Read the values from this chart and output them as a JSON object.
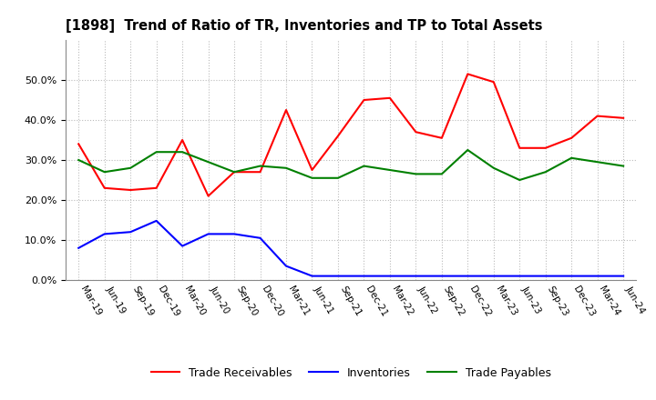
{
  "title": "[1898]  Trend of Ratio of TR, Inventories and TP to Total Assets",
  "x_labels": [
    "Mar-19",
    "Jun-19",
    "Sep-19",
    "Dec-19",
    "Mar-20",
    "Jun-20",
    "Sep-20",
    "Dec-20",
    "Mar-21",
    "Jun-21",
    "Sep-21",
    "Dec-21",
    "Mar-22",
    "Jun-22",
    "Sep-22",
    "Dec-22",
    "Mar-23",
    "Jun-23",
    "Sep-23",
    "Dec-23",
    "Mar-24",
    "Jun-24"
  ],
  "trade_receivables": [
    0.34,
    0.23,
    0.225,
    0.23,
    0.35,
    0.21,
    0.27,
    0.27,
    0.425,
    0.275,
    0.36,
    0.45,
    0.455,
    0.37,
    0.355,
    0.515,
    0.495,
    0.33,
    0.33,
    0.355,
    0.41,
    0.405
  ],
  "inventories": [
    0.08,
    0.115,
    0.12,
    0.148,
    0.085,
    0.115,
    0.115,
    0.105,
    0.035,
    0.01,
    0.01,
    0.01,
    0.01,
    0.01,
    0.01,
    0.01,
    0.01,
    0.01,
    0.01,
    0.01,
    0.01,
    0.01
  ],
  "trade_payables": [
    0.3,
    0.27,
    0.28,
    0.32,
    0.32,
    0.295,
    0.27,
    0.285,
    0.28,
    0.255,
    0.255,
    0.285,
    0.275,
    0.265,
    0.265,
    0.325,
    0.28,
    0.25,
    0.27,
    0.305,
    0.295,
    0.285
  ],
  "color_tr": "#FF0000",
  "color_inv": "#0000FF",
  "color_tp": "#008000",
  "ylim": [
    0.0,
    0.6
  ],
  "yticks": [
    0.0,
    0.1,
    0.2,
    0.3,
    0.4,
    0.5
  ],
  "background_color": "#FFFFFF",
  "grid_color": "#BBBBBB",
  "legend_labels": [
    "Trade Receivables",
    "Inventories",
    "Trade Payables"
  ]
}
